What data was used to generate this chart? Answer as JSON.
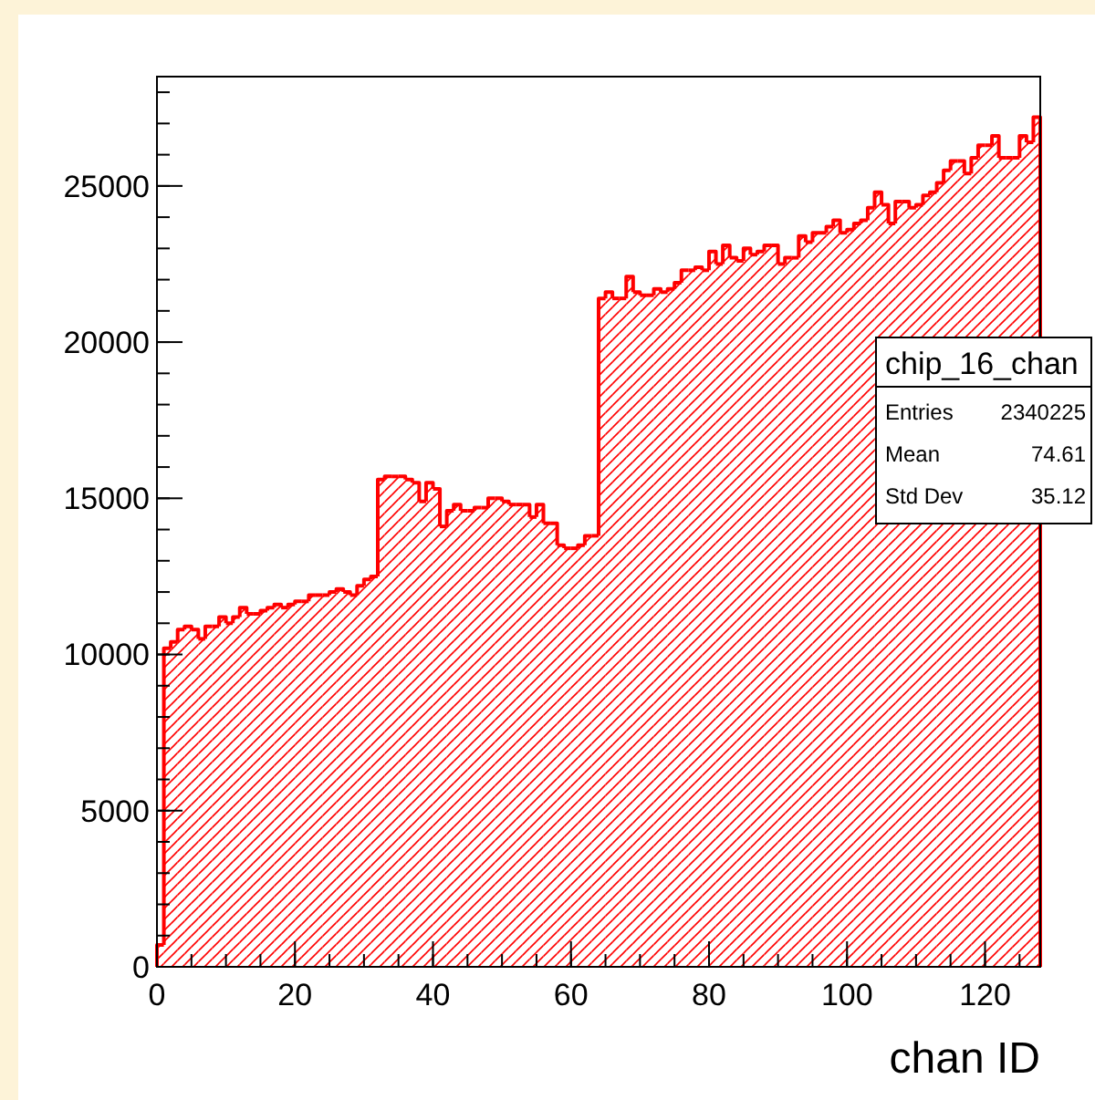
{
  "chart_data": {
    "type": "histogram",
    "title": "chip_16_chan",
    "xlabel": "chan ID",
    "bins": [
      0,
      1,
      2,
      3,
      4,
      5,
      6,
      7,
      8,
      9,
      10,
      11,
      12,
      13,
      14,
      15,
      16,
      17,
      18,
      19,
      20,
      21,
      22,
      23,
      24,
      25,
      26,
      27,
      28,
      29,
      30,
      31,
      32,
      33,
      34,
      35,
      36,
      37,
      38,
      39,
      40,
      41,
      42,
      43,
      44,
      45,
      46,
      47,
      48,
      49,
      50,
      51,
      52,
      53,
      54,
      55,
      56,
      57,
      58,
      59,
      60,
      61,
      62,
      63,
      64,
      65,
      66,
      67,
      68,
      69,
      70,
      71,
      72,
      73,
      74,
      75,
      76,
      77,
      78,
      79,
      80,
      81,
      82,
      83,
      84,
      85,
      86,
      87,
      88,
      89,
      90,
      91,
      92,
      93,
      94,
      95,
      96,
      97,
      98,
      99,
      100,
      101,
      102,
      103,
      104,
      105,
      106,
      107,
      108,
      109,
      110,
      111,
      112,
      113,
      114,
      115,
      116,
      117,
      118,
      119,
      120,
      121,
      122,
      123,
      124,
      125,
      126,
      127,
      128
    ],
    "values": [
      700,
      10200,
      10400,
      10800,
      10900,
      10800,
      10500,
      10900,
      10900,
      11200,
      11000,
      11200,
      11500,
      11300,
      11300,
      11400,
      11500,
      11600,
      11500,
      11600,
      11700,
      11700,
      11900,
      11900,
      11900,
      12000,
      12100,
      12000,
      11900,
      12200,
      12400,
      12500,
      15600,
      15700,
      15700,
      15700,
      15600,
      15500,
      14900,
      15500,
      15300,
      14100,
      14600,
      14800,
      14600,
      14600,
      14700,
      14700,
      15000,
      15000,
      14900,
      14800,
      14800,
      14800,
      14400,
      14800,
      14200,
      14200,
      13500,
      13400,
      13400,
      13500,
      13800,
      13800,
      21400,
      21600,
      21400,
      21400,
      22100,
      21600,
      21500,
      21500,
      21700,
      21600,
      21700,
      21900,
      22300,
      22300,
      22400,
      22300,
      22900,
      22500,
      23100,
      22700,
      22600,
      23000,
      22800,
      22900,
      23100,
      23100,
      22500,
      22700,
      22700,
      23400,
      23200,
      23500,
      23500,
      23700,
      23900,
      23500,
      23600,
      23800,
      23900,
      24300,
      24800,
      24400,
      23800,
      24500,
      24500,
      24300,
      24400,
      24700,
      24800,
      25100,
      25500,
      25800,
      25800,
      25400,
      25900,
      26300,
      26300,
      26600,
      25900,
      25900,
      25900,
      26600,
      26400,
      27200
    ],
    "color": "#ff0000",
    "xlim": [
      0,
      128
    ],
    "ylim": [
      0,
      28500
    ],
    "xticks": [
      0,
      20,
      40,
      60,
      80,
      100,
      120
    ],
    "yticks": [
      0,
      5000,
      10000,
      15000,
      20000,
      25000
    ],
    "grid": false,
    "annotations": [
      "Entries",
      "2340225",
      "Mean",
      "74.61",
      "Std Dev",
      "35.12"
    ]
  }
}
